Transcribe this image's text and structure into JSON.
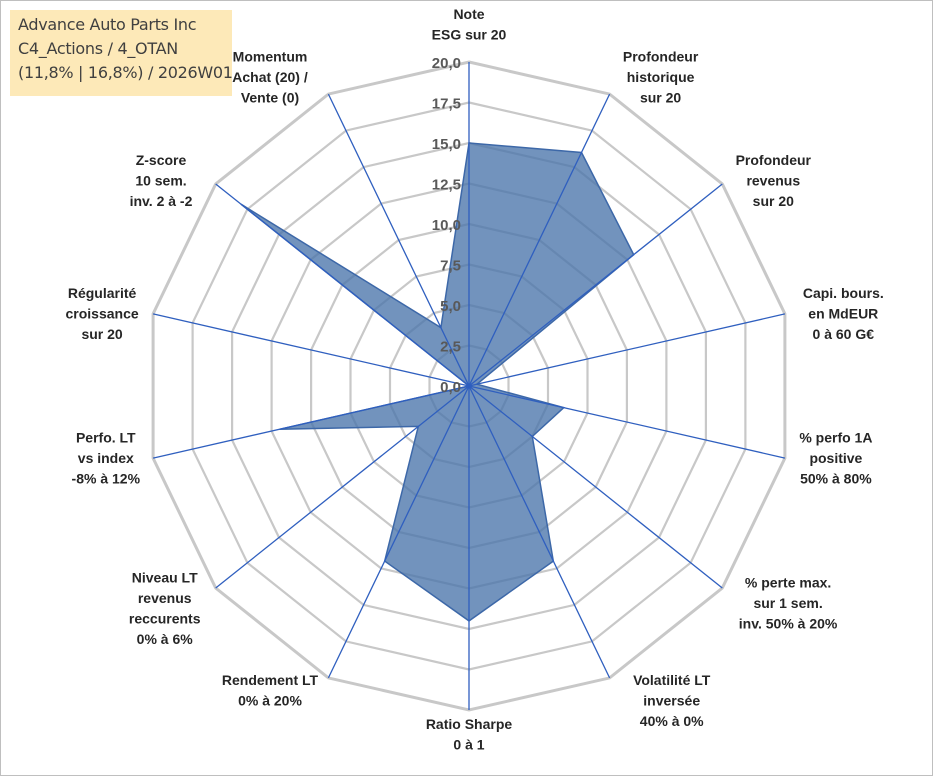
{
  "title_box": {
    "line1": "Advance Auto Parts Inc",
    "line2": "C4_Actions / 4_OTAN",
    "line3": "(11,8% | 16,8%) / 2026W01"
  },
  "chart_data": {
    "type": "radar",
    "title": "Advance Auto Parts Inc",
    "rmax": 20,
    "ticks": [
      "0,0",
      "2,5",
      "5,0",
      "7,5",
      "10,0",
      "12,5",
      "15,0",
      "17,5",
      "20,0"
    ],
    "axes": [
      {
        "label": [
          "Note",
          "ESG sur 20"
        ],
        "value": 15.0
      },
      {
        "label": [
          "Profondeur",
          "historique",
          "sur 20"
        ],
        "value": 16.0
      },
      {
        "label": [
          "Profondeur",
          "revenus",
          "sur 20"
        ],
        "value": 13.0
      },
      {
        "label": [
          "Capi. bours.",
          "en MdEUR",
          "0 à 60 G€"
        ],
        "value": 0.5
      },
      {
        "label": [
          "% perfo 1A",
          "positive",
          "50% à 80%"
        ],
        "value": 6.0
      },
      {
        "label": [
          "% perte max.",
          "sur 1 sem.",
          "inv. 50% à 20%"
        ],
        "value": 5.0
      },
      {
        "label": [
          "Volatilité LT",
          "inversée",
          "40% à 0%"
        ],
        "value": 12.0
      },
      {
        "label": [
          "Ratio Sharpe",
          "0 à 1"
        ],
        "value": 14.5
      },
      {
        "label": [
          "Rendement LT",
          "0% à 20%"
        ],
        "value": 12.0
      },
      {
        "label": [
          "Niveau LT",
          "revenus",
          "reccurents",
          "0% à 6%"
        ],
        "value": 4.0
      },
      {
        "label": [
          "Perfo. LT",
          "vs index",
          "-8% à 12%"
        ],
        "value": 12.0
      },
      {
        "label": [
          "Régularité",
          "croissance",
          "sur 20"
        ],
        "value": 0.0
      },
      {
        "label": [
          "Z-score",
          "10 sem.",
          "inv. 2 à -2"
        ],
        "value": 18.0
      },
      {
        "label": [
          "Momentum",
          "Achat (20) /",
          "Vente (0)"
        ],
        "value": 4.0
      }
    ],
    "colors": {
      "fill": "#4a74ab",
      "stroke": "#3d68a8",
      "axis": "#2f5fbf",
      "grid": "#c8c8c8"
    }
  }
}
